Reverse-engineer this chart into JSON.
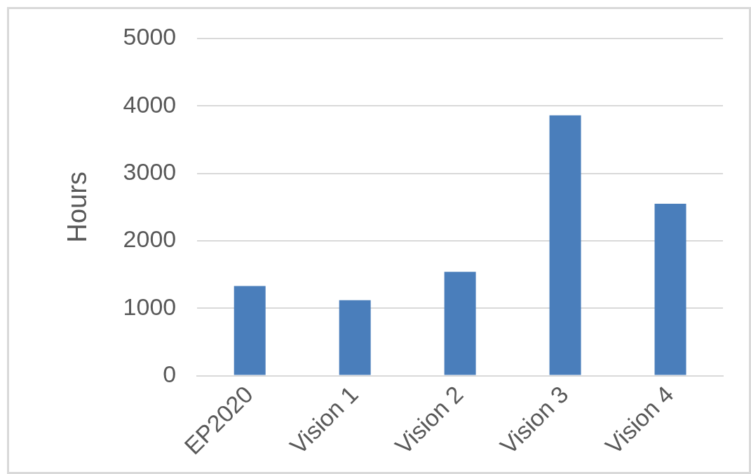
{
  "chart_data": {
    "type": "bar",
    "ylabel": "Hours",
    "categories": [
      "EP2020",
      "Vision 1",
      "Vision 2",
      "Vision 3",
      "Vision 4"
    ],
    "values": [
      1330,
      1120,
      1540,
      3860,
      2550
    ],
    "color": "#4a7ebb",
    "ylim": [
      0,
      5000
    ],
    "yticks": [
      0,
      1000,
      2000,
      3000,
      4000,
      5000
    ],
    "grid": "y"
  }
}
